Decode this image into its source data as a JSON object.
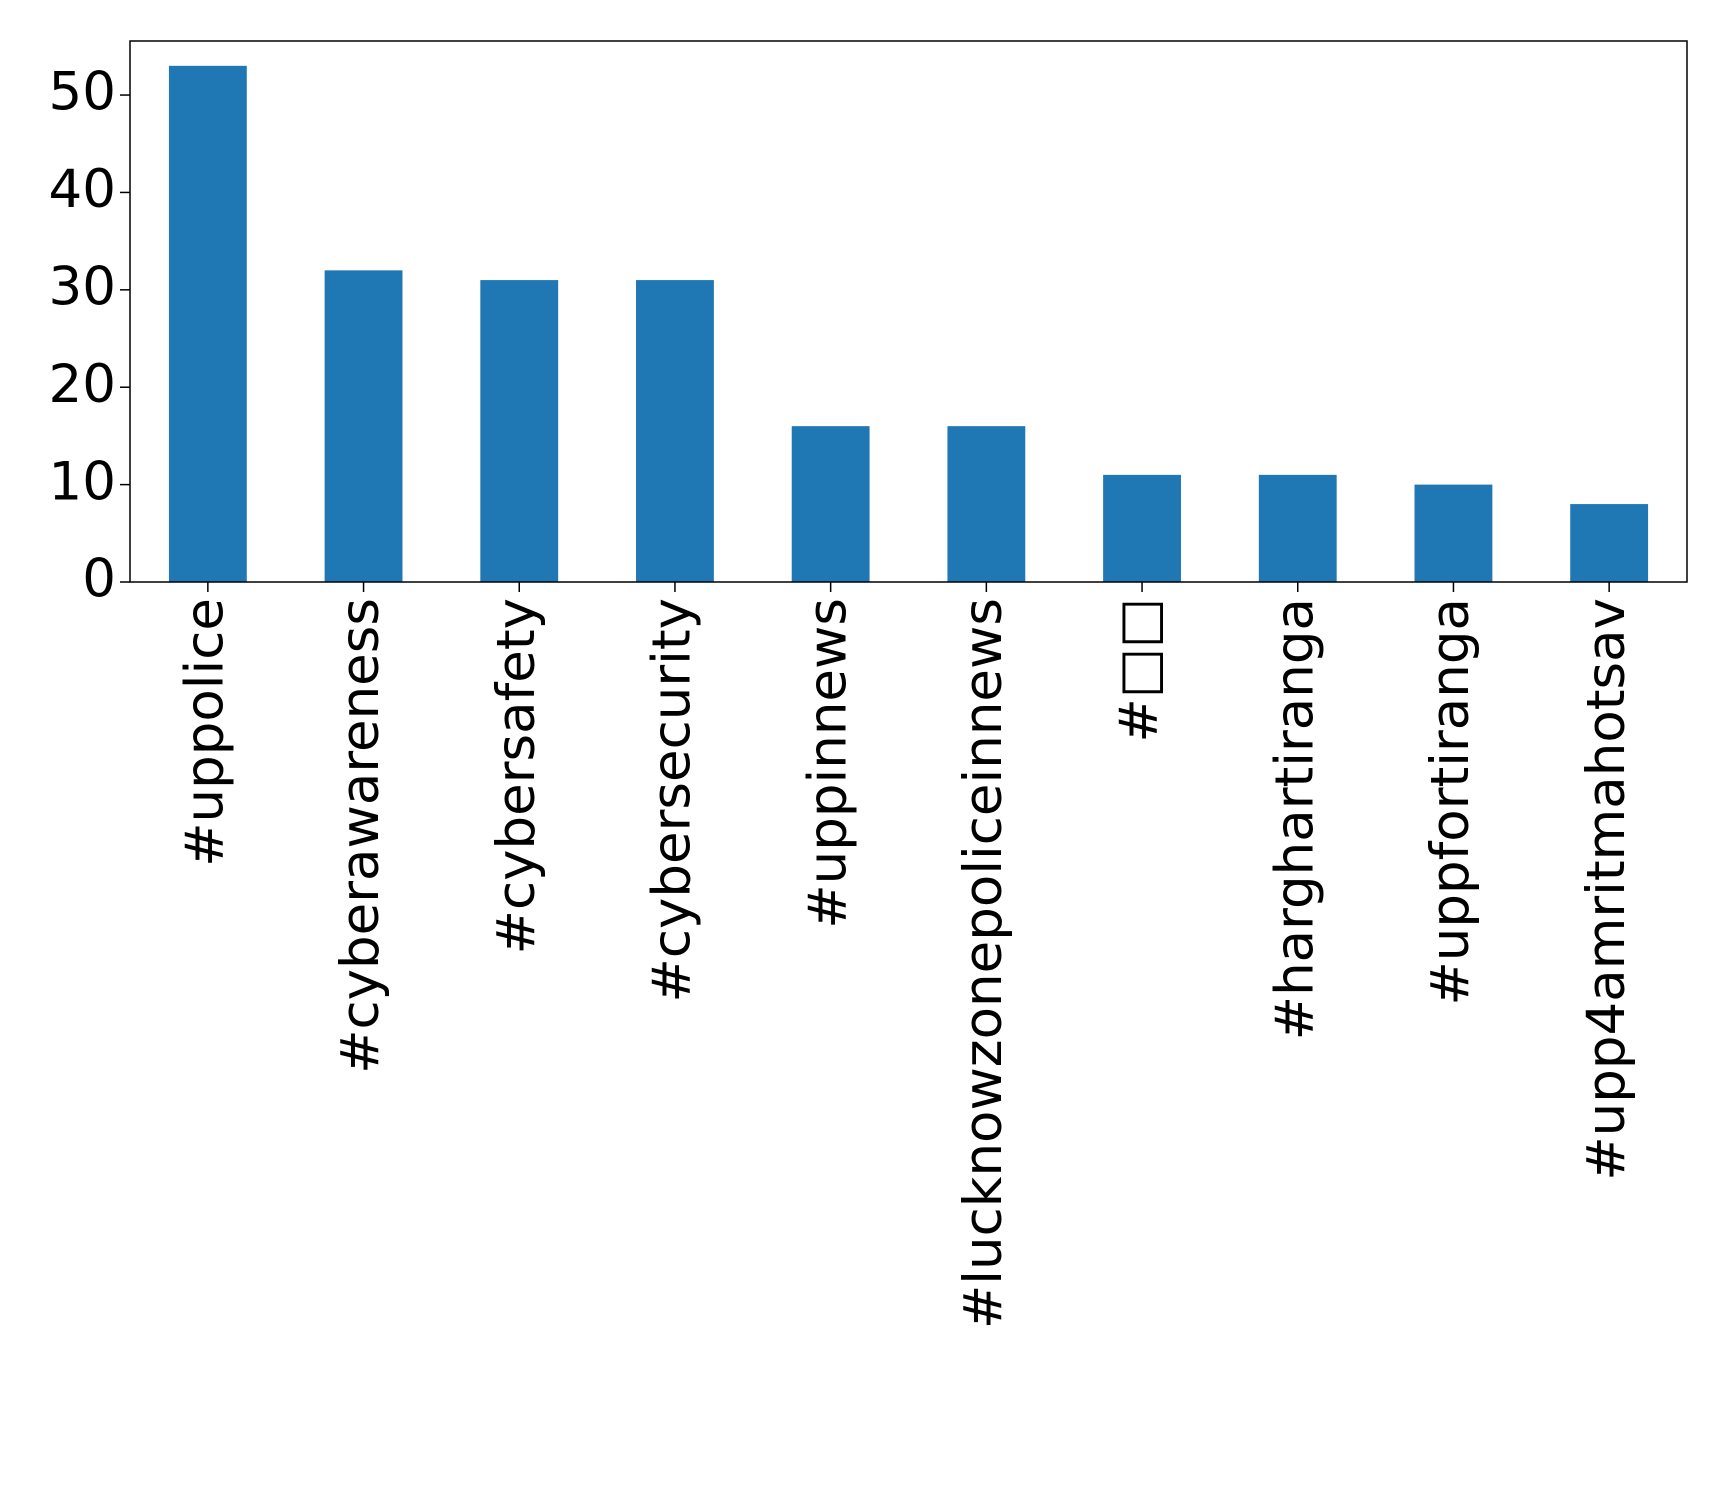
{
  "chart_data": {
    "type": "bar",
    "categories": [
      "#uppolice",
      "#cyberawareness",
      "#cybersafety",
      "#cybersecurity",
      "#uppinnews",
      "#lucknowzonepoliceinnews",
      "#□□",
      "#harghartiranga",
      "#uppfortiranga",
      "#upp4amritmahotsav"
    ],
    "values": [
      53,
      32,
      31,
      31,
      16,
      16,
      11,
      11,
      10,
      8
    ],
    "color": "#1f77b4",
    "ylim": [
      0,
      55.55
    ],
    "yticks": [
      0,
      10,
      20,
      30,
      40,
      50
    ],
    "grid": false
  }
}
